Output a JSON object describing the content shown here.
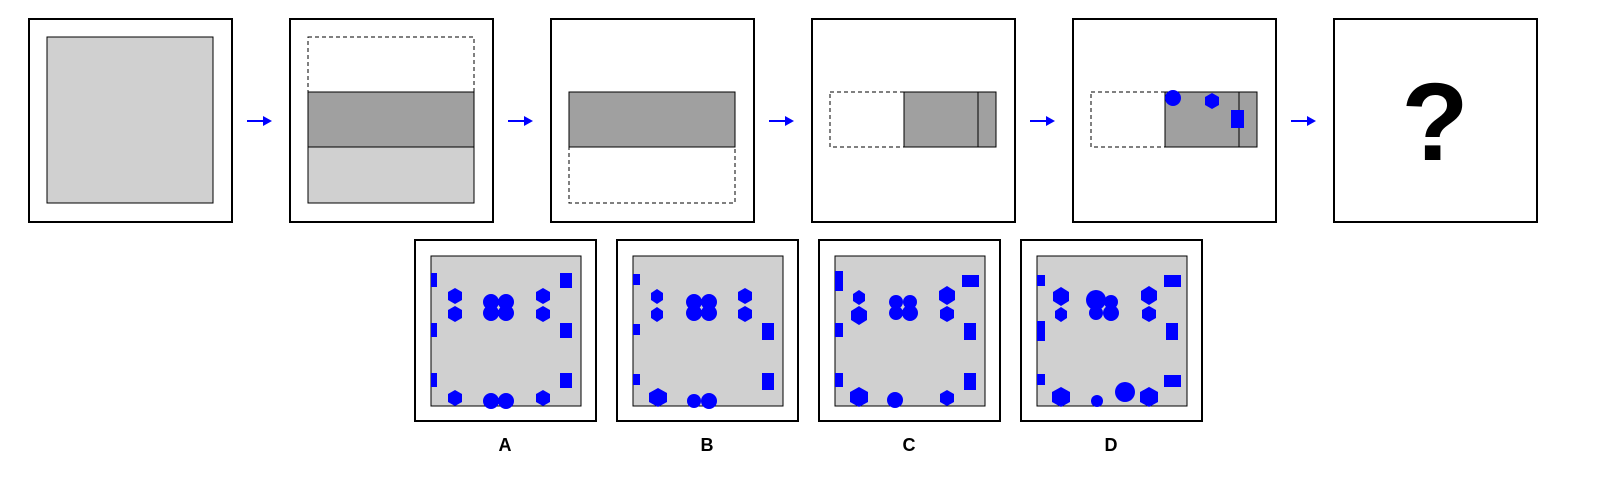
{
  "question_mark": "?",
  "option_labels": [
    "A",
    "B",
    "C",
    "D"
  ],
  "colors": {
    "paper": "#d0d0d0",
    "paper_folded": "#a0a0a0",
    "hole": "#0000ff",
    "arrow": "#0000ff"
  }
}
